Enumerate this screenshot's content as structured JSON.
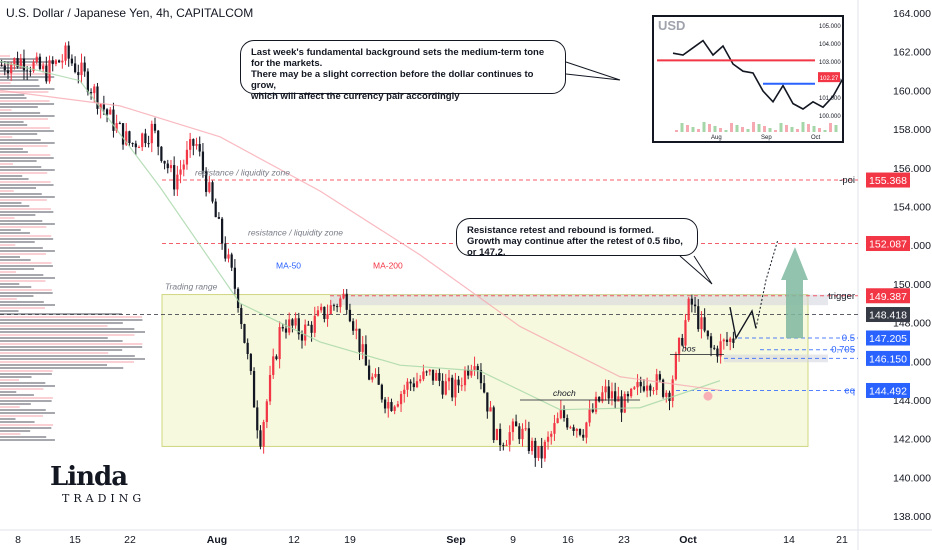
{
  "header": {
    "title": "U.S. Dollar / Japanese Yen, 4h, CAPITALCOM"
  },
  "chart_data": {
    "type": "candlestick",
    "symbol": "U.S. Dollar / Japanese Yen",
    "interval": "4h",
    "source": "CAPITALCOM",
    "y_ticks": [
      "164.000",
      "162.000",
      "160.000",
      "158.000",
      "156.000",
      "154.000",
      "152.000",
      "150.000",
      "148.000",
      "146.000",
      "144.000",
      "142.000",
      "140.000",
      "138.000"
    ],
    "x_ticks": [
      "8",
      "15",
      "22",
      "Aug",
      "12",
      "19",
      "Sep",
      "9",
      "16",
      "23",
      "Oct",
      "14",
      "21"
    ],
    "ylim": [
      137.2,
      164.6
    ],
    "price_path": [
      [
        0,
        161.3
      ],
      [
        1,
        161.6
      ],
      [
        2,
        160.9
      ],
      [
        3,
        161.8
      ],
      [
        4,
        160.5
      ],
      [
        5,
        158.6
      ],
      [
        6,
        157.2
      ],
      [
        7,
        158.0
      ],
      [
        8,
        155.3
      ],
      [
        9,
        157.4
      ],
      [
        10,
        153.2
      ],
      [
        11,
        149.2
      ],
      [
        12,
        142.0
      ],
      [
        13,
        148.0
      ],
      [
        14,
        147.5
      ],
      [
        15,
        148.5
      ],
      [
        16,
        149.4
      ],
      [
        17,
        145.4
      ],
      [
        18,
        143.8
      ],
      [
        19,
        144.9
      ],
      [
        20,
        145.3
      ],
      [
        21,
        144.4
      ],
      [
        22,
        146.4
      ],
      [
        23,
        141.9
      ],
      [
        24,
        142.5
      ],
      [
        25,
        141.0
      ],
      [
        26,
        143.2
      ],
      [
        27,
        142.5
      ],
      [
        28,
        144.4
      ],
      [
        29,
        143.7
      ],
      [
        30,
        145.2
      ],
      [
        31,
        144.4
      ],
      [
        32,
        149.1
      ],
      [
        33,
        146.5
      ],
      [
        34,
        147.2
      ]
    ],
    "levels": [
      {
        "name": "-poi",
        "price": 155.368,
        "label": "155.368",
        "color": "#f23645"
      },
      {
        "name": "",
        "price": 152.087,
        "label": "152.087",
        "color": "#f23645"
      },
      {
        "name": "trigger",
        "price": 149.387,
        "label": "149.387",
        "color": "#f23645"
      },
      {
        "name": "",
        "price": 148.418,
        "label": "148.418",
        "color": "#363a45"
      },
      {
        "name": "0.5",
        "price": 147.205,
        "label": "147.205",
        "color": "#2962ff"
      },
      {
        "name": "0.705",
        "price": 146.6,
        "label": "",
        "color": "#2962ff"
      },
      {
        "name": "",
        "price": 146.15,
        "label": "146.150",
        "color": "#2962ff"
      },
      {
        "name": "eq",
        "price": 144.492,
        "label": "144.492",
        "color": "#2962ff"
      }
    ],
    "annotations": [
      {
        "text": "resistance / liquidity zone",
        "price": 155.6
      },
      {
        "text": "resistance / liquidity zone",
        "price": 152.5
      },
      {
        "text": "Trading range",
        "price": 149.7
      },
      {
        "text": "MA-50",
        "price": 150.8
      },
      {
        "text": "MA-200",
        "price": 150.8
      },
      {
        "text": "bos",
        "price": 146.5
      },
      {
        "text": "choch",
        "price": 144.2
      }
    ],
    "callouts": [
      "Last week's fundamental background sets the medium-term tone for the markets.\nThere may be a slight correction before the dollar continues to grow,\nwhich will affect the currency pair accordingly",
      "Resistance retest and rebound is formed.\nGrowth may continue after the retest of 0.5 fibo, or 147.2."
    ],
    "inset": {
      "label": "USD",
      "y_ticks": [
        "105.000",
        "104.000",
        "103.000",
        "102.000",
        "101.000",
        "100.000"
      ],
      "x_ticks": [
        "Aug",
        "Sep",
        "Oct"
      ],
      "last_price": "102.27"
    },
    "logo": {
      "line1": "Linda",
      "line2": "TRADING"
    },
    "colors": {
      "up": "#089981",
      "down": "#131722",
      "red_line": "#f23645",
      "range_fill": "#f5f9d8",
      "range_border": "#c8cf6a"
    }
  }
}
